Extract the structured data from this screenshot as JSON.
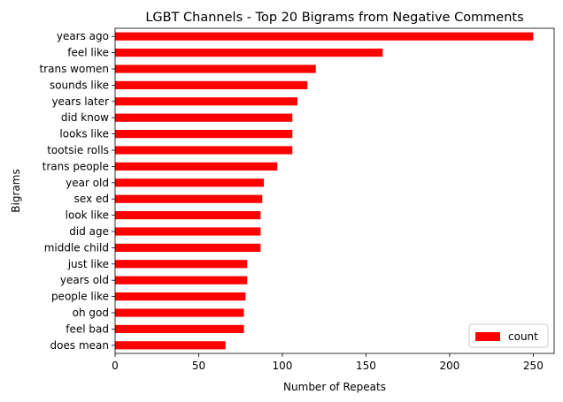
{
  "chart_data": {
    "type": "bar",
    "orientation": "horizontal",
    "title": "LGBT Channels - Top 20 Bigrams from Negative Comments",
    "xlabel": "Number of Repeats",
    "ylabel": "Bigrams",
    "xlim": [
      0,
      262.5
    ],
    "xticks": [
      0,
      50,
      100,
      150,
      200,
      250
    ],
    "grid": false,
    "legend_position": "lower-right",
    "bar_color": "#ff0000",
    "categories": [
      "years ago",
      "feel like",
      "trans women",
      "sounds like",
      "years later",
      "did know",
      "looks like",
      "tootsie rolls",
      "trans people",
      "year old",
      "sex ed",
      "look like",
      "did age",
      "middle child",
      "just like",
      "years old",
      "people like",
      "oh god",
      "feel bad",
      "does mean"
    ],
    "series": [
      {
        "name": "count",
        "values": [
          250,
          160,
          120,
          115,
          109,
          106,
          106,
          106,
          97,
          89,
          88,
          87,
          87,
          87,
          79,
          79,
          78,
          77,
          77,
          66
        ]
      }
    ]
  }
}
